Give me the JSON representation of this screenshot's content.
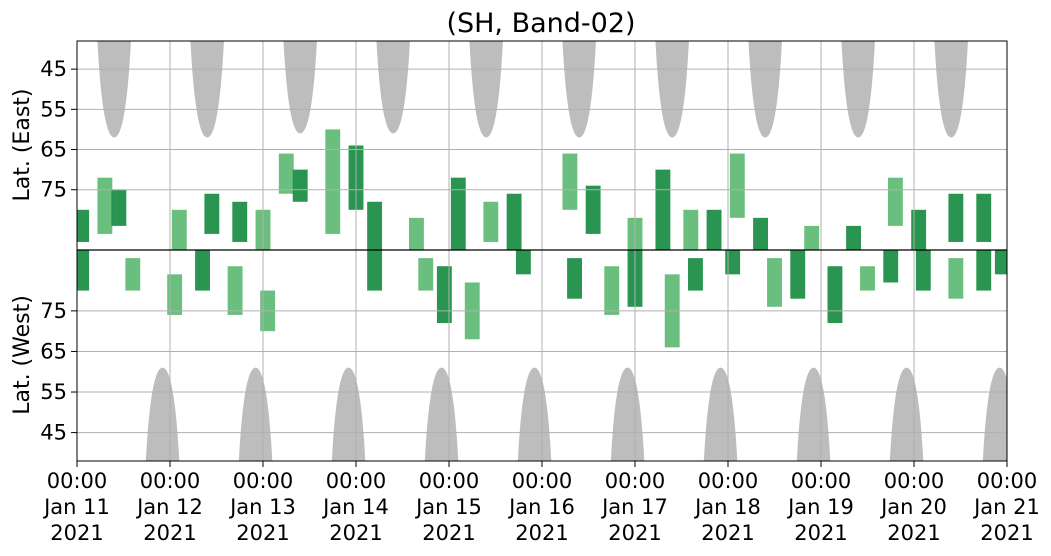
{
  "chart_data": {
    "type": "heatmap",
    "title": "(SH, Band-02)",
    "ylabel_top": "Lat. (East)",
    "ylabel_bottom": "Lat. (West)",
    "xlabel": "",
    "grid": true,
    "legend": "none",
    "colors": {
      "activity_dark": "#138a3e",
      "activity_light": "#5ab870",
      "daylight_mask": "#bdbdbd",
      "grid": "#b0b0b0",
      "equator_line": "#000000"
    },
    "xlim": [
      "2021-01-11 00:00",
      "2021-01-21 00:00"
    ],
    "x_ticks": [
      {
        "time": "00:00",
        "date": "Jan 11",
        "year": "2021"
      },
      {
        "time": "00:00",
        "date": "Jan 12",
        "year": "2021"
      },
      {
        "time": "00:00",
        "date": "Jan 13",
        "year": "2021"
      },
      {
        "time": "00:00",
        "date": "Jan 14",
        "year": "2021"
      },
      {
        "time": "00:00",
        "date": "Jan 15",
        "year": "2021"
      },
      {
        "time": "00:00",
        "date": "Jan 16",
        "year": "2021"
      },
      {
        "time": "00:00",
        "date": "Jan 17",
        "year": "2021"
      },
      {
        "time": "00:00",
        "date": "Jan 18",
        "year": "2021"
      },
      {
        "time": "00:00",
        "date": "Jan 19",
        "year": "2021"
      },
      {
        "time": "00:00",
        "date": "Jan 20",
        "year": "2021"
      },
      {
        "time": "00:00",
        "date": "Jan 21",
        "year": "2021"
      }
    ],
    "y_ticks_east": [
      "45",
      "55",
      "65",
      "75"
    ],
    "y_ticks_west": [
      "75",
      "65",
      "55",
      "45"
    ],
    "ylim_east": [
      38,
      90
    ],
    "ylim_west": [
      90,
      38
    ],
    "daylight_east": [
      {
        "center_day": 0.4,
        "min_lat": 62
      },
      {
        "center_day": 1.4,
        "min_lat": 62
      },
      {
        "center_day": 2.4,
        "min_lat": 61
      },
      {
        "center_day": 3.4,
        "min_lat": 61
      },
      {
        "center_day": 4.4,
        "min_lat": 62
      },
      {
        "center_day": 5.4,
        "min_lat": 62
      },
      {
        "center_day": 6.4,
        "min_lat": 62
      },
      {
        "center_day": 7.4,
        "min_lat": 62
      },
      {
        "center_day": 8.4,
        "min_lat": 62
      },
      {
        "center_day": 9.4,
        "min_lat": 62
      }
    ],
    "daylight_west": [
      {
        "center_day": 0.92,
        "min_lat": 61
      },
      {
        "center_day": 1.92,
        "min_lat": 61
      },
      {
        "center_day": 2.92,
        "min_lat": 61
      },
      {
        "center_day": 3.92,
        "min_lat": 61
      },
      {
        "center_day": 4.92,
        "min_lat": 61
      },
      {
        "center_day": 5.92,
        "min_lat": 61
      },
      {
        "center_day": 6.92,
        "min_lat": 61
      },
      {
        "center_day": 7.92,
        "min_lat": 61
      },
      {
        "center_day": 8.92,
        "min_lat": 61
      },
      {
        "center_day": 9.92,
        "min_lat": 61
      }
    ],
    "activity_east": [
      {
        "day": 0.05,
        "lat_from": 80,
        "lat_to": 88,
        "level": 2
      },
      {
        "day": 0.3,
        "lat_from": 72,
        "lat_to": 86,
        "level": 1
      },
      {
        "day": 0.45,
        "lat_from": 75,
        "lat_to": 84,
        "level": 2
      },
      {
        "day": 1.1,
        "lat_from": 80,
        "lat_to": 90,
        "level": 1
      },
      {
        "day": 1.45,
        "lat_from": 76,
        "lat_to": 86,
        "level": 2
      },
      {
        "day": 1.75,
        "lat_from": 78,
        "lat_to": 88,
        "level": 2
      },
      {
        "day": 2.0,
        "lat_from": 80,
        "lat_to": 90,
        "level": 1
      },
      {
        "day": 2.25,
        "lat_from": 66,
        "lat_to": 76,
        "level": 1
      },
      {
        "day": 2.4,
        "lat_from": 70,
        "lat_to": 78,
        "level": 2
      },
      {
        "day": 2.75,
        "lat_from": 60,
        "lat_to": 86,
        "level": 1
      },
      {
        "day": 3.0,
        "lat_from": 64,
        "lat_to": 80,
        "level": 2
      },
      {
        "day": 3.2,
        "lat_from": 78,
        "lat_to": 90,
        "level": 2
      },
      {
        "day": 3.65,
        "lat_from": 82,
        "lat_to": 90,
        "level": 1
      },
      {
        "day": 4.1,
        "lat_from": 72,
        "lat_to": 90,
        "level": 2
      },
      {
        "day": 4.45,
        "lat_from": 78,
        "lat_to": 88,
        "level": 1
      },
      {
        "day": 4.7,
        "lat_from": 76,
        "lat_to": 90,
        "level": 2
      },
      {
        "day": 5.3,
        "lat_from": 66,
        "lat_to": 80,
        "level": 1
      },
      {
        "day": 5.55,
        "lat_from": 74,
        "lat_to": 86,
        "level": 2
      },
      {
        "day": 6.0,
        "lat_from": 82,
        "lat_to": 90,
        "level": 1
      },
      {
        "day": 6.3,
        "lat_from": 70,
        "lat_to": 90,
        "level": 2
      },
      {
        "day": 6.6,
        "lat_from": 80,
        "lat_to": 90,
        "level": 1
      },
      {
        "day": 6.85,
        "lat_from": 80,
        "lat_to": 90,
        "level": 2
      },
      {
        "day": 7.1,
        "lat_from": 66,
        "lat_to": 82,
        "level": 1
      },
      {
        "day": 7.35,
        "lat_from": 82,
        "lat_to": 90,
        "level": 2
      },
      {
        "day": 7.9,
        "lat_from": 84,
        "lat_to": 90,
        "level": 1
      },
      {
        "day": 8.35,
        "lat_from": 84,
        "lat_to": 90,
        "level": 2
      },
      {
        "day": 8.8,
        "lat_from": 72,
        "lat_to": 84,
        "level": 1
      },
      {
        "day": 9.05,
        "lat_from": 80,
        "lat_to": 90,
        "level": 2
      },
      {
        "day": 9.45,
        "lat_from": 76,
        "lat_to": 88,
        "level": 2
      },
      {
        "day": 9.75,
        "lat_from": 76,
        "lat_to": 88,
        "level": 2
      }
    ],
    "activity_west": [
      {
        "day": 0.05,
        "lat_from": 80,
        "lat_to": 90,
        "level": 2
      },
      {
        "day": 0.6,
        "lat_from": 80,
        "lat_to": 88,
        "level": 1
      },
      {
        "day": 1.05,
        "lat_from": 74,
        "lat_to": 84,
        "level": 1
      },
      {
        "day": 1.35,
        "lat_from": 80,
        "lat_to": 90,
        "level": 2
      },
      {
        "day": 1.7,
        "lat_from": 74,
        "lat_to": 86,
        "level": 1
      },
      {
        "day": 2.05,
        "lat_from": 70,
        "lat_to": 80,
        "level": 1
      },
      {
        "day": 3.2,
        "lat_from": 80,
        "lat_to": 90,
        "level": 2
      },
      {
        "day": 3.75,
        "lat_from": 80,
        "lat_to": 88,
        "level": 1
      },
      {
        "day": 3.95,
        "lat_from": 72,
        "lat_to": 86,
        "level": 2
      },
      {
        "day": 4.25,
        "lat_from": 68,
        "lat_to": 82,
        "level": 1
      },
      {
        "day": 4.8,
        "lat_from": 84,
        "lat_to": 90,
        "level": 2
      },
      {
        "day": 5.35,
        "lat_from": 78,
        "lat_to": 88,
        "level": 2
      },
      {
        "day": 5.75,
        "lat_from": 74,
        "lat_to": 86,
        "level": 1
      },
      {
        "day": 6.0,
        "lat_from": 76,
        "lat_to": 90,
        "level": 2
      },
      {
        "day": 6.4,
        "lat_from": 66,
        "lat_to": 84,
        "level": 1
      },
      {
        "day": 6.65,
        "lat_from": 80,
        "lat_to": 88,
        "level": 2
      },
      {
        "day": 7.05,
        "lat_from": 84,
        "lat_to": 90,
        "level": 2
      },
      {
        "day": 7.5,
        "lat_from": 76,
        "lat_to": 88,
        "level": 1
      },
      {
        "day": 7.75,
        "lat_from": 78,
        "lat_to": 90,
        "level": 2
      },
      {
        "day": 8.15,
        "lat_from": 72,
        "lat_to": 86,
        "level": 2
      },
      {
        "day": 8.5,
        "lat_from": 80,
        "lat_to": 86,
        "level": 1
      },
      {
        "day": 8.75,
        "lat_from": 82,
        "lat_to": 90,
        "level": 2
      },
      {
        "day": 9.1,
        "lat_from": 80,
        "lat_to": 90,
        "level": 2
      },
      {
        "day": 9.45,
        "lat_from": 78,
        "lat_to": 88,
        "level": 1
      },
      {
        "day": 9.75,
        "lat_from": 80,
        "lat_to": 90,
        "level": 2
      },
      {
        "day": 9.95,
        "lat_from": 84,
        "lat_to": 90,
        "level": 2
      }
    ]
  }
}
